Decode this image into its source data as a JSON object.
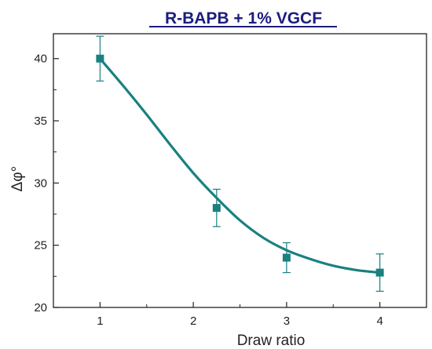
{
  "chart_data": {
    "type": "scatter",
    "title": "R-BAPB + 1% VGCF",
    "xlabel": "Draw ratio",
    "ylabel": "Δφ°",
    "xlim": [
      0.5,
      4.5
    ],
    "ylim": [
      20,
      42
    ],
    "xticks": [
      1,
      2,
      3,
      4
    ],
    "yticks": [
      20,
      25,
      30,
      35,
      40
    ],
    "series": [
      {
        "points": [
          {
            "x": 1,
            "y": 40,
            "err": 1.8
          },
          {
            "x": 2.25,
            "y": 28,
            "err": 1.5
          },
          {
            "x": 3,
            "y": 24,
            "err": 1.2
          },
          {
            "x": 4,
            "y": 22.8,
            "err": 1.5
          }
        ]
      }
    ],
    "fit_curve": [
      {
        "x": 1.0,
        "y": 40.0
      },
      {
        "x": 1.25,
        "y": 37.8
      },
      {
        "x": 1.5,
        "y": 35.5
      },
      {
        "x": 1.75,
        "y": 33.1
      },
      {
        "x": 2.0,
        "y": 30.8
      },
      {
        "x": 2.25,
        "y": 28.8
      },
      {
        "x": 2.5,
        "y": 27.0
      },
      {
        "x": 2.75,
        "y": 25.6
      },
      {
        "x": 3.0,
        "y": 24.6
      },
      {
        "x": 3.25,
        "y": 23.9
      },
      {
        "x": 3.5,
        "y": 23.35
      },
      {
        "x": 3.75,
        "y": 23.0
      },
      {
        "x": 4.0,
        "y": 22.8
      }
    ],
    "grid": false,
    "colors": {
      "series": "#1a8080",
      "title": "#1c1c80",
      "axis": "#222222"
    }
  }
}
